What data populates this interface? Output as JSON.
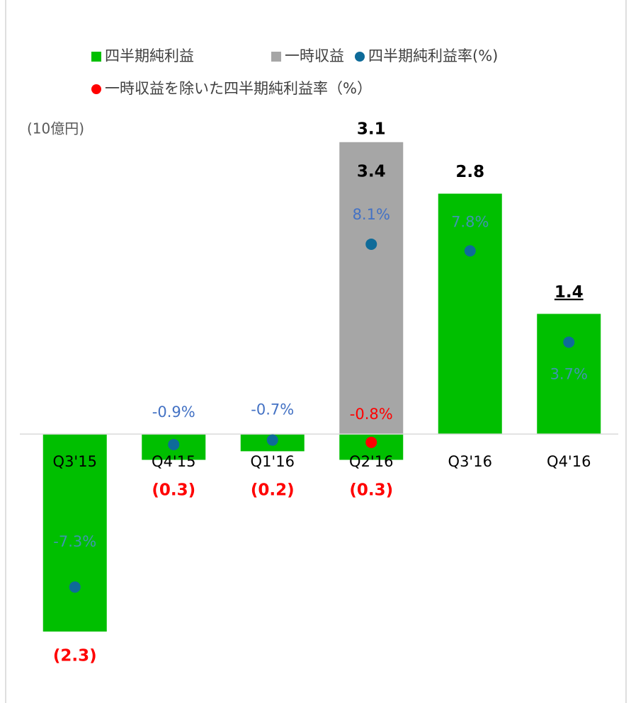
{
  "chart_data": {
    "type": "bar",
    "unit_label": "(10億円)",
    "categories": [
      "Q3'15",
      "Q4'15",
      "Q1'16",
      "Q2'16",
      "Q3'16",
      "Q4'16"
    ],
    "ylim": [
      -3,
      4
    ],
    "y2lim": [
      -12,
      15
    ],
    "series": [
      {
        "name": "四半期純利益",
        "type": "bar",
        "color": "#00bf00",
        "values": [
          -2.3,
          -0.3,
          -0.2,
          -0.3,
          2.8,
          1.4
        ],
        "value_labels": [
          "(2.3)",
          "(0.3)",
          "(0.2)",
          "(0.3)",
          "2.8",
          "1.4"
        ]
      },
      {
        "name": "一時収益",
        "type": "bar",
        "color": "#a6a6a6",
        "values": [
          null,
          null,
          null,
          3.4,
          null,
          null
        ],
        "value_labels": [
          null,
          null,
          null,
          "3.4",
          null,
          null
        ]
      },
      {
        "name": "四半期純利益率(%)",
        "type": "scatter",
        "axis": "y2",
        "color": "#0e6b99",
        "values": [
          -7.3,
          -0.9,
          -0.7,
          8.1,
          7.8,
          3.7
        ],
        "value_labels": [
          "-7.3%",
          "-0.9%",
          "-0.7%",
          "8.1%",
          "7.8%",
          "3.7%"
        ]
      },
      {
        "name": "一時収益を除いた四半期純利益率（%）",
        "type": "scatter",
        "axis": "y2",
        "color": "#ff0000",
        "values": [
          null,
          null,
          null,
          -0.8,
          null,
          null
        ],
        "value_labels": [
          null,
          null,
          null,
          "-0.8%",
          null,
          null
        ]
      }
    ],
    "annotations": [
      {
        "text": "3.1",
        "category": "Q2'16"
      }
    ]
  }
}
